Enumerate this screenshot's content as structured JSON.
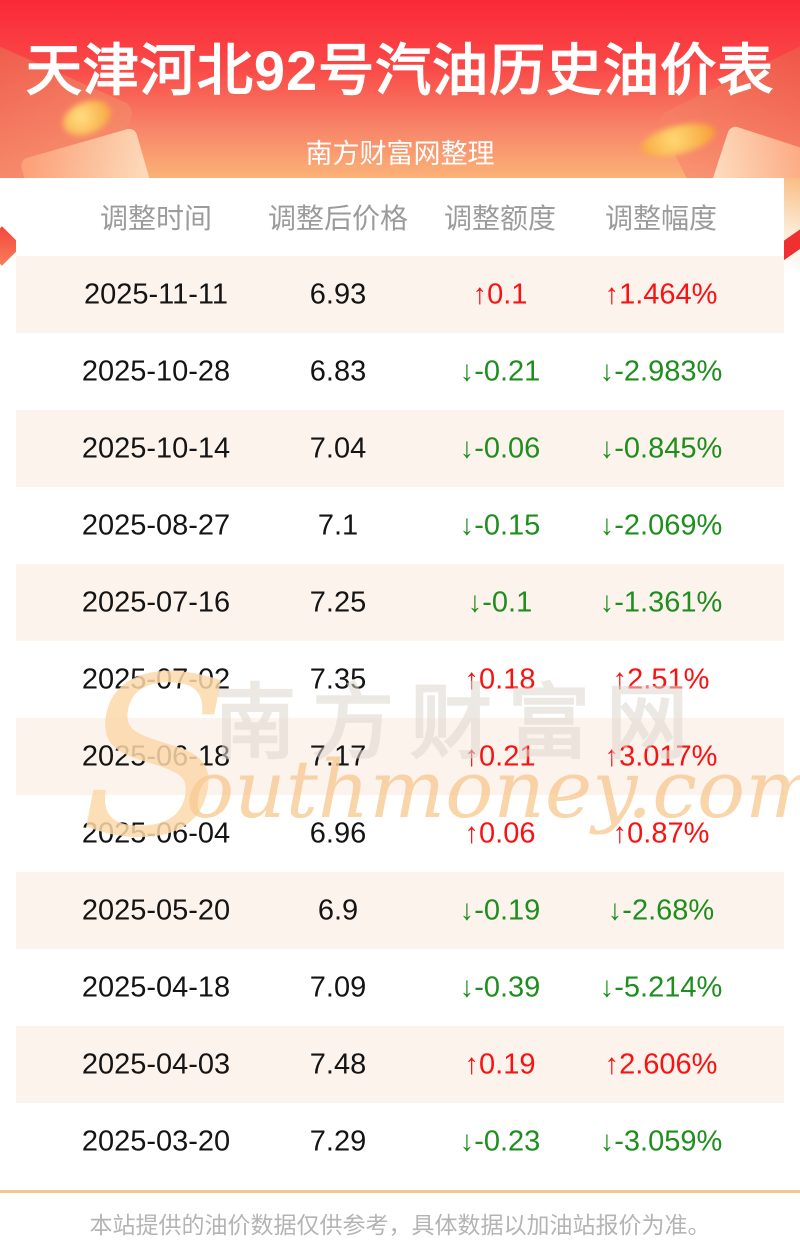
{
  "page": {
    "title": "天津河北92号汽油历史油价表",
    "subtitle": "南方财富网整理",
    "footer_note": "本站提供的油价数据仅供参考，具体数据以加油站报价为准。"
  },
  "watermark": {
    "initial": "S",
    "cn": "南方财富网",
    "en": "outhmoney.com"
  },
  "table": {
    "columns": [
      "调整时间",
      "调整后价格",
      "调整额度",
      "调整幅度"
    ],
    "rows": [
      {
        "date": "2025-11-11",
        "price": "6.93",
        "change": "↑0.1",
        "pct": "↑1.464%",
        "direction": "up"
      },
      {
        "date": "2025-10-28",
        "price": "6.83",
        "change": "↓-0.21",
        "pct": "↓-2.983%",
        "direction": "down"
      },
      {
        "date": "2025-10-14",
        "price": "7.04",
        "change": "↓-0.06",
        "pct": "↓-0.845%",
        "direction": "down"
      },
      {
        "date": "2025-08-27",
        "price": "7.1",
        "change": "↓-0.15",
        "pct": "↓-2.069%",
        "direction": "down"
      },
      {
        "date": "2025-07-16",
        "price": "7.25",
        "change": "↓-0.1",
        "pct": "↓-1.361%",
        "direction": "down"
      },
      {
        "date": "2025-07-02",
        "price": "7.35",
        "change": "↑0.18",
        "pct": "↑2.51%",
        "direction": "up"
      },
      {
        "date": "2025-06-18",
        "price": "7.17",
        "change": "↑0.21",
        "pct": "↑3.017%",
        "direction": "up"
      },
      {
        "date": "2025-06-04",
        "price": "6.96",
        "change": "↑0.06",
        "pct": "↑0.87%",
        "direction": "up"
      },
      {
        "date": "2025-05-20",
        "price": "6.9",
        "change": "↓-0.19",
        "pct": "↓-2.68%",
        "direction": "down"
      },
      {
        "date": "2025-04-18",
        "price": "7.09",
        "change": "↓-0.39",
        "pct": "↓-5.214%",
        "direction": "down"
      },
      {
        "date": "2025-04-03",
        "price": "7.48",
        "change": "↑0.19",
        "pct": "↑2.606%",
        "direction": "up"
      },
      {
        "date": "2025-03-20",
        "price": "7.29",
        "change": "↓-0.23",
        "pct": "↓-3.059%",
        "direction": "down"
      }
    ]
  },
  "colors": {
    "up_red": "#fa1212",
    "down_green": "#1e8e1e",
    "banner_top": "#fb2838",
    "banner_bottom": "#fbb277",
    "row_stripe": "#fdf3ed",
    "footer_line": "#f4c58e"
  },
  "chart_data": {
    "type": "table",
    "title": "天津河北92号汽油历史油价表",
    "subtitle": "南方财富网整理",
    "columns": [
      "调整时间",
      "调整后价格",
      "调整额度",
      "调整幅度"
    ],
    "rows": [
      [
        "2025-11-11",
        "6.93",
        "↑0.1",
        "↑1.464%"
      ],
      [
        "2025-10-28",
        "6.83",
        "↓-0.21",
        "↓-2.983%"
      ],
      [
        "2025-10-14",
        "7.04",
        "↓-0.06",
        "↓-0.845%"
      ],
      [
        "2025-08-27",
        "7.1",
        "↓-0.15",
        "↓-2.069%"
      ],
      [
        "2025-07-16",
        "7.25",
        "↓-0.1",
        "↓-1.361%"
      ],
      [
        "2025-07-02",
        "7.35",
        "↑0.18",
        "↑2.51%"
      ],
      [
        "2025-06-18",
        "7.17",
        "↑0.21",
        "↑3.017%"
      ],
      [
        "2025-06-04",
        "6.96",
        "↑0.06",
        "↑0.87%"
      ],
      [
        "2025-05-20",
        "6.9",
        "↓-0.19",
        "↓-2.68%"
      ],
      [
        "2025-04-18",
        "7.09",
        "↓-0.39",
        "↓-5.214%"
      ],
      [
        "2025-04-03",
        "7.48",
        "↑0.19",
        "↑2.606%"
      ],
      [
        "2025-03-20",
        "7.29",
        "↓-0.23",
        "↓-3.059%"
      ]
    ],
    "notes": "红色↑为上调，绿色↓为下调；奇数行浅粉底纹"
  }
}
